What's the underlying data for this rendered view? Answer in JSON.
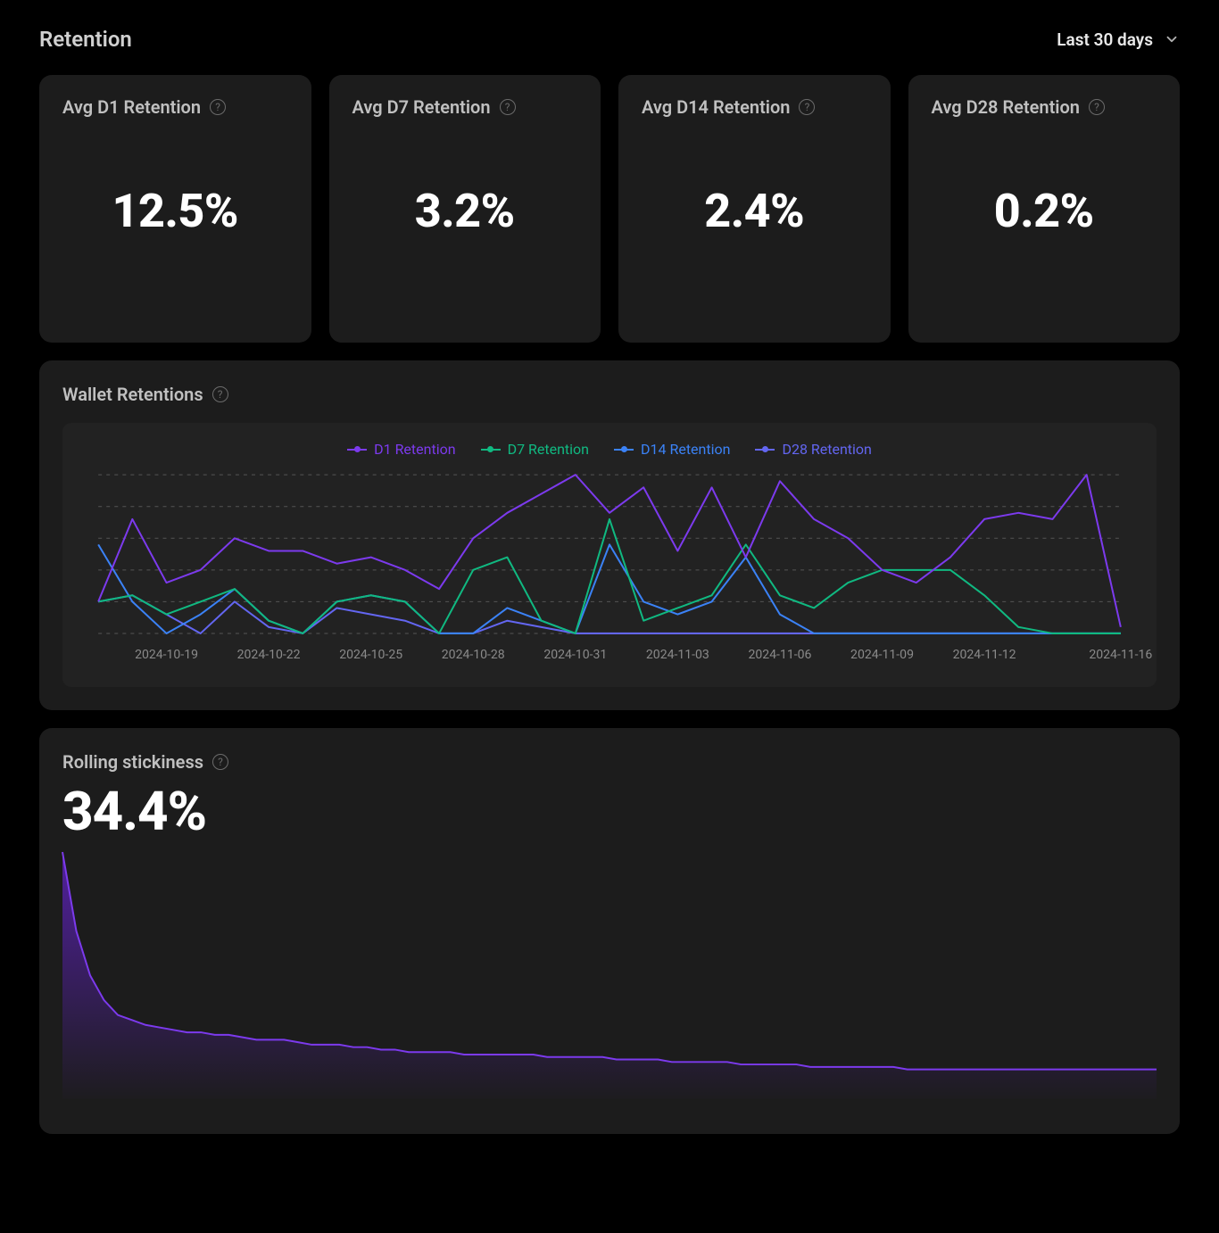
{
  "header": {
    "title": "Retention",
    "date_range_label": "Last 30 days"
  },
  "colors": {
    "page_bg": "#000000",
    "card_bg": "#1c1c1c",
    "chart_inner_bg": "#222222",
    "text_primary": "#ffffff",
    "text_secondary": "#c0c0c0",
    "text_muted": "#8a8a8a",
    "help_border": "#6b6b6b",
    "grid_line": "#555555"
  },
  "metrics": [
    {
      "label": "Avg D1 Retention",
      "value": "12.5%"
    },
    {
      "label": "Avg D7 Retention",
      "value": "3.2%"
    },
    {
      "label": "Avg D14 Retention",
      "value": "2.4%"
    },
    {
      "label": "Avg D28 Retention",
      "value": "0.2%"
    }
  ],
  "wallet_chart": {
    "title": "Wallet Retentions",
    "type": "line",
    "x_dates": [
      "2024-10-17",
      "2024-10-18",
      "2024-10-19",
      "2024-10-20",
      "2024-10-21",
      "2024-10-22",
      "2024-10-23",
      "2024-10-24",
      "2024-10-25",
      "2024-10-26",
      "2024-10-27",
      "2024-10-28",
      "2024-10-29",
      "2024-10-30",
      "2024-10-31",
      "2024-11-01",
      "2024-11-02",
      "2024-11-03",
      "2024-11-04",
      "2024-11-05",
      "2024-11-06",
      "2024-11-07",
      "2024-11-08",
      "2024-11-09",
      "2024-11-10",
      "2024-11-11",
      "2024-11-12",
      "2024-11-13",
      "2024-11-14",
      "2024-11-15",
      "2024-11-16"
    ],
    "x_tick_labels": [
      "2024-10-19",
      "2024-10-22",
      "2024-10-25",
      "2024-10-28",
      "2024-10-31",
      "2024-11-03",
      "2024-11-06",
      "2024-11-09",
      "2024-11-12",
      "2024-11-16"
    ],
    "ylim": [
      0,
      26
    ],
    "y_grid_values": [
      0,
      5,
      10,
      15,
      20,
      25
    ],
    "grid_color": "#555555",
    "legend": [
      {
        "label": "D1 Retention",
        "color": "#7c3aed"
      },
      {
        "label": "D7 Retention",
        "color": "#10b981"
      },
      {
        "label": "D14 Retention",
        "color": "#3b82f6"
      },
      {
        "label": "D28 Retention",
        "color": "#6366f1"
      }
    ],
    "series": {
      "d1": [
        5,
        18,
        8,
        10,
        15,
        13,
        13,
        11,
        12,
        10,
        7,
        15,
        19,
        22,
        25,
        19,
        23,
        13,
        23,
        12,
        24,
        18,
        15,
        10,
        8,
        12,
        18,
        19,
        18,
        25,
        1
      ],
      "d7": [
        5,
        6,
        3,
        5,
        7,
        2,
        0,
        5,
        6,
        5,
        0,
        10,
        12,
        2,
        0,
        18,
        2,
        4,
        6,
        14,
        6,
        4,
        8,
        10,
        10,
        10,
        6,
        1,
        0,
        0,
        0
      ],
      "d14": [
        14,
        5,
        0,
        3,
        7,
        2,
        0,
        5,
        6,
        5,
        0,
        0,
        4,
        2,
        0,
        14,
        5,
        3,
        5,
        12,
        3,
        0,
        0,
        0,
        0,
        0,
        0,
        0,
        0,
        0,
        0
      ],
      "d28": [
        5,
        6,
        3,
        0,
        5,
        1,
        0,
        4,
        3,
        2,
        0,
        0,
        2,
        1,
        0,
        0,
        0,
        0,
        0,
        0,
        0,
        0,
        0,
        0,
        0,
        0,
        0,
        0,
        0,
        0,
        0
      ]
    },
    "line_width": 2,
    "marker_radius": 3,
    "label_fontsize": 14,
    "legend_fontsize": 16
  },
  "stickiness": {
    "title": "Rolling stickiness",
    "value": "34.4%",
    "type": "area",
    "color_line": "#7c3aed",
    "fill_top": "#5b21b6",
    "fill_bottom": "rgba(91,33,182,0.05)",
    "ylim": [
      0,
      100
    ],
    "data": [
      100,
      68,
      50,
      40,
      34,
      32,
      30,
      29,
      28,
      27,
      27,
      26,
      26,
      25,
      24,
      24,
      24,
      23,
      22,
      22,
      22,
      21,
      21,
      20,
      20,
      19,
      19,
      19,
      19,
      18,
      18,
      18,
      18,
      18,
      18,
      17,
      17,
      17,
      17,
      17,
      16,
      16,
      16,
      16,
      15,
      15,
      15,
      15,
      15,
      14,
      14,
      14,
      14,
      14,
      13,
      13,
      13,
      13,
      13,
      13,
      13,
      12,
      12,
      12,
      12,
      12,
      12,
      12,
      12,
      12,
      12,
      12,
      12,
      12,
      12,
      12,
      12,
      12,
      12,
      12
    ],
    "line_width": 2
  }
}
